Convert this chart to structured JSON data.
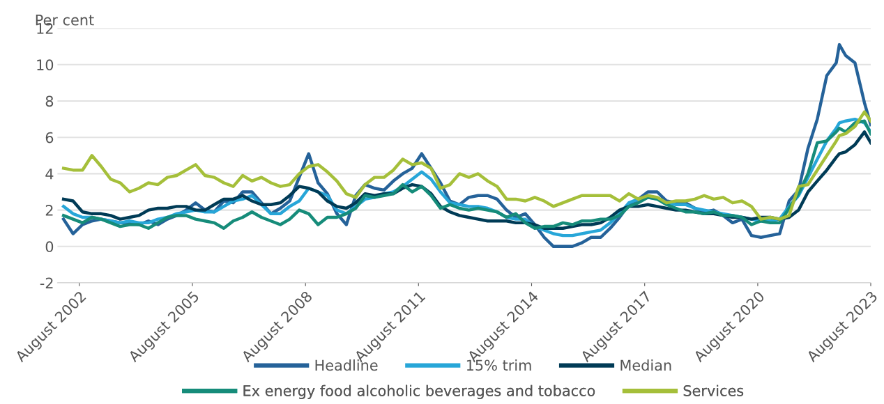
{
  "chart_data": {
    "type": "line",
    "ylabel": "Per cent",
    "x": [
      "2002-03",
      "2002-06",
      "2002-09",
      "2002-12",
      "2003-03",
      "2003-06",
      "2003-09",
      "2003-12",
      "2004-03",
      "2004-06",
      "2004-09",
      "2004-12",
      "2005-03",
      "2005-06",
      "2005-09",
      "2005-12",
      "2006-03",
      "2006-06",
      "2006-09",
      "2006-12",
      "2007-03",
      "2007-06",
      "2007-09",
      "2007-12",
      "2008-03",
      "2008-06",
      "2008-09",
      "2008-12",
      "2009-03",
      "2009-06",
      "2009-09",
      "2009-12",
      "2010-03",
      "2010-06",
      "2010-09",
      "2010-12",
      "2011-03",
      "2011-06",
      "2011-09",
      "2011-12",
      "2012-03",
      "2012-06",
      "2012-09",
      "2012-12",
      "2013-03",
      "2013-06",
      "2013-09",
      "2013-12",
      "2014-03",
      "2014-06",
      "2014-09",
      "2014-12",
      "2015-03",
      "2015-06",
      "2015-09",
      "2015-12",
      "2016-03",
      "2016-06",
      "2016-09",
      "2016-12",
      "2017-03",
      "2017-06",
      "2017-09",
      "2017-12",
      "2018-03",
      "2018-06",
      "2018-09",
      "2018-12",
      "2019-03",
      "2019-06",
      "2019-09",
      "2019-12",
      "2020-03",
      "2020-06",
      "2020-09",
      "2020-12",
      "2021-03",
      "2021-06",
      "2021-09",
      "2021-12",
      "2022-03",
      "2022-06",
      "2022-09",
      "2022-10",
      "2022-12",
      "2023-03",
      "2023-06",
      "2023-08"
    ],
    "series": [
      {
        "name": "Headline",
        "color": "#256299",
        "values": [
          1.5,
          0.7,
          1.2,
          1.4,
          1.5,
          1.4,
          1.3,
          1.3,
          1.2,
          1.4,
          1.2,
          1.5,
          1.7,
          2.0,
          2.4,
          2.0,
          1.9,
          2.5,
          2.4,
          3.0,
          3.0,
          2.4,
          1.8,
          2.1,
          2.5,
          3.8,
          5.1,
          3.5,
          2.9,
          1.8,
          1.2,
          2.8,
          3.4,
          3.2,
          3.1,
          3.6,
          4.0,
          4.3,
          5.1,
          4.3,
          3.5,
          2.5,
          2.3,
          2.7,
          2.8,
          2.8,
          2.6,
          2.0,
          1.6,
          1.8,
          1.2,
          0.5,
          0.0,
          0.0,
          0.0,
          0.2,
          0.5,
          0.5,
          1.0,
          1.6,
          2.3,
          2.6,
          3.0,
          3.0,
          2.5,
          2.4,
          2.4,
          2.1,
          1.9,
          2.0,
          1.7,
          1.3,
          1.5,
          0.6,
          0.5,
          0.6,
          0.7,
          2.5,
          3.1,
          5.4,
          7.0,
          9.4,
          10.1,
          11.1,
          10.5,
          10.1,
          7.9,
          6.7
        ]
      },
      {
        "name": "15% trim",
        "color": "#27a6d8",
        "values": [
          2.2,
          1.8,
          1.6,
          1.6,
          1.5,
          1.4,
          1.3,
          1.4,
          1.3,
          1.3,
          1.5,
          1.6,
          1.8,
          1.9,
          2.0,
          1.9,
          1.9,
          2.2,
          2.5,
          2.6,
          2.8,
          2.3,
          1.8,
          1.8,
          2.2,
          2.5,
          3.2,
          3.0,
          2.8,
          2.0,
          1.8,
          2.2,
          2.6,
          2.7,
          2.9,
          3.0,
          3.3,
          3.7,
          4.1,
          3.7,
          3.0,
          2.4,
          2.3,
          2.2,
          2.2,
          2.1,
          1.9,
          1.6,
          1.5,
          1.5,
          1.1,
          0.9,
          0.7,
          0.6,
          0.6,
          0.7,
          0.8,
          0.9,
          1.3,
          1.8,
          2.4,
          2.6,
          2.7,
          2.6,
          2.4,
          2.3,
          2.3,
          2.1,
          2.0,
          1.9,
          1.8,
          1.7,
          1.6,
          1.5,
          1.4,
          1.4,
          1.5,
          2.2,
          2.8,
          3.8,
          4.8,
          5.8,
          6.5,
          6.8,
          6.9,
          7.0,
          6.8,
          6.3
        ]
      },
      {
        "name": "Median",
        "color": "#003b56",
        "values": [
          2.6,
          2.5,
          1.9,
          1.8,
          1.8,
          1.7,
          1.5,
          1.6,
          1.7,
          2.0,
          2.1,
          2.1,
          2.2,
          2.2,
          2.0,
          2.0,
          2.3,
          2.6,
          2.6,
          2.8,
          2.5,
          2.3,
          2.3,
          2.4,
          2.8,
          3.3,
          3.2,
          3.0,
          2.5,
          2.2,
          2.1,
          2.4,
          2.9,
          2.8,
          2.9,
          2.9,
          3.2,
          3.4,
          3.3,
          2.9,
          2.2,
          1.9,
          1.7,
          1.6,
          1.5,
          1.4,
          1.4,
          1.4,
          1.3,
          1.3,
          1.2,
          1.0,
          1.0,
          1.0,
          1.1,
          1.2,
          1.2,
          1.3,
          1.6,
          2.0,
          2.2,
          2.2,
          2.3,
          2.2,
          2.1,
          2.0,
          2.0,
          1.9,
          1.8,
          1.8,
          1.7,
          1.6,
          1.6,
          1.5,
          1.6,
          1.6,
          1.5,
          1.6,
          2.0,
          3.0,
          3.6,
          4.2,
          4.9,
          5.1,
          5.2,
          5.6,
          6.3,
          5.7
        ]
      },
      {
        "name": "Ex energy food alcoholic beverages and tobacco",
        "color": "#168c7a",
        "values": [
          1.7,
          1.5,
          1.3,
          1.6,
          1.5,
          1.3,
          1.1,
          1.2,
          1.2,
          1.0,
          1.3,
          1.6,
          1.7,
          1.7,
          1.5,
          1.4,
          1.3,
          1.0,
          1.4,
          1.6,
          1.9,
          1.6,
          1.4,
          1.2,
          1.5,
          2.0,
          1.8,
          1.2,
          1.6,
          1.6,
          1.8,
          2.1,
          2.8,
          2.7,
          2.8,
          2.9,
          3.4,
          3.0,
          3.3,
          2.8,
          2.1,
          2.3,
          2.1,
          2.0,
          2.1,
          2.0,
          1.9,
          1.6,
          1.8,
          1.3,
          1.0,
          1.1,
          1.1,
          1.3,
          1.2,
          1.4,
          1.4,
          1.5,
          1.5,
          1.7,
          2.2,
          2.4,
          2.7,
          2.6,
          2.3,
          2.1,
          1.9,
          1.9,
          1.8,
          1.9,
          1.7,
          1.7,
          1.6,
          1.2,
          1.4,
          1.3,
          1.3,
          2.1,
          2.9,
          4.0,
          5.7,
          5.8,
          6.3,
          6.5,
          6.3,
          6.8,
          6.9,
          6.2
        ]
      },
      {
        "name": "Services",
        "color": "#a5bf3a",
        "values": [
          4.3,
          4.2,
          4.2,
          5.0,
          4.4,
          3.7,
          3.5,
          3.0,
          3.2,
          3.5,
          3.4,
          3.8,
          3.9,
          4.2,
          4.5,
          3.9,
          3.8,
          3.5,
          3.3,
          3.9,
          3.6,
          3.8,
          3.5,
          3.3,
          3.4,
          4.0,
          4.4,
          4.5,
          4.1,
          3.6,
          2.9,
          2.7,
          3.4,
          3.8,
          3.8,
          4.2,
          4.8,
          4.5,
          4.6,
          4.3,
          3.2,
          3.4,
          4.0,
          3.8,
          4.0,
          3.6,
          3.3,
          2.6,
          2.6,
          2.5,
          2.7,
          2.5,
          2.2,
          2.4,
          2.6,
          2.8,
          2.8,
          2.8,
          2.8,
          2.5,
          2.9,
          2.6,
          2.8,
          2.7,
          2.4,
          2.5,
          2.5,
          2.6,
          2.8,
          2.6,
          2.7,
          2.4,
          2.5,
          2.2,
          1.5,
          1.6,
          1.5,
          1.7,
          3.3,
          3.4,
          4.2,
          5.0,
          5.8,
          6.1,
          6.2,
          6.6,
          7.4,
          6.9
        ]
      }
    ],
    "xlim": [
      "2002-01",
      "2023-08"
    ],
    "xticks": [
      {
        "value": "2002-08",
        "label": "August 2002"
      },
      {
        "value": "2005-08",
        "label": "August 2005"
      },
      {
        "value": "2008-08",
        "label": "August 2008"
      },
      {
        "value": "2011-08",
        "label": "August 2011"
      },
      {
        "value": "2014-08",
        "label": "August 2014"
      },
      {
        "value": "2017-08",
        "label": "August 2017"
      },
      {
        "value": "2020-08",
        "label": "August 2020"
      },
      {
        "value": "2023-08",
        "label": "August 2023"
      }
    ],
    "ylim": [
      -2,
      12
    ],
    "yticks": [
      {
        "value": -2,
        "label": "-2"
      },
      0,
      2,
      4,
      6,
      8,
      10,
      12
    ],
    "grid": "y",
    "legend": "bottom",
    "marker": "none",
    "line_style": "solid"
  }
}
